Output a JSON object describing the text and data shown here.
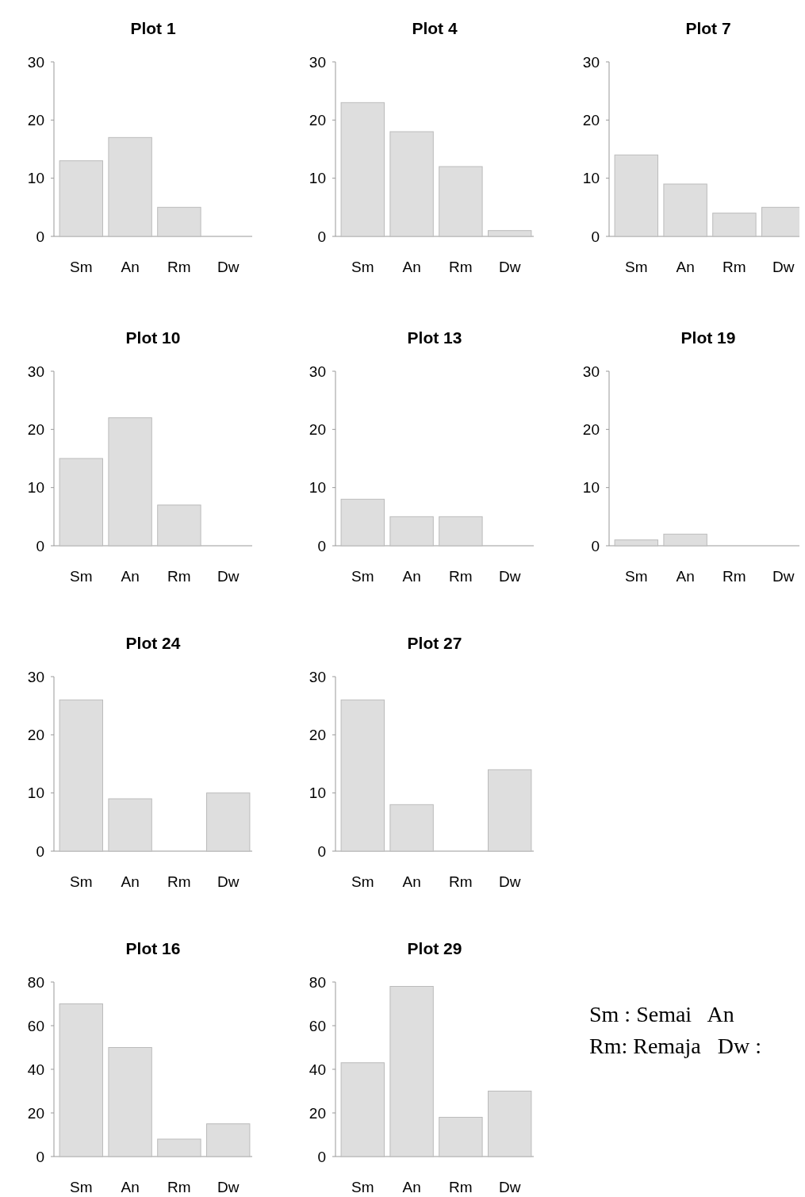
{
  "chart_data": [
    {
      "type": "bar",
      "title": "Plot 1",
      "categories": [
        "Sm",
        "An",
        "Rm",
        "Dw"
      ],
      "values": [
        13,
        17,
        5,
        0
      ],
      "color": "#dedede",
      "ylim": [
        0,
        30
      ],
      "yticks": [
        0,
        10,
        20,
        30
      ]
    },
    {
      "type": "bar",
      "title": "Plot 4",
      "categories": [
        "Sm",
        "An",
        "Rm",
        "Dw"
      ],
      "values": [
        23,
        18,
        12,
        1
      ],
      "color": "#dedede",
      "ylim": [
        0,
        30
      ],
      "yticks": [
        0,
        10,
        20,
        30
      ]
    },
    {
      "type": "bar",
      "title": "Plot 7",
      "categories": [
        "Sm",
        "An",
        "Rm",
        "Dw"
      ],
      "values": [
        14,
        9,
        4,
        5
      ],
      "color": "#dedede",
      "ylim": [
        0,
        30
      ],
      "yticks": [
        0,
        10,
        20,
        30
      ]
    },
    {
      "type": "bar",
      "title": "Plot 10",
      "categories": [
        "Sm",
        "An",
        "Rm",
        "Dw"
      ],
      "values": [
        15,
        22,
        7,
        0
      ],
      "color": "#dedede",
      "ylim": [
        0,
        30
      ],
      "yticks": [
        0,
        10,
        20,
        30
      ]
    },
    {
      "type": "bar",
      "title": "Plot 13",
      "categories": [
        "Sm",
        "An",
        "Rm",
        "Dw"
      ],
      "values": [
        8,
        5,
        5,
        0
      ],
      "color": "#dedede",
      "ylim": [
        0,
        30
      ],
      "yticks": [
        0,
        10,
        20,
        30
      ]
    },
    {
      "type": "bar",
      "title": "Plot 19",
      "categories": [
        "Sm",
        "An",
        "Rm",
        "Dw"
      ],
      "values": [
        1,
        2,
        0,
        0
      ],
      "color": "#dedede",
      "ylim": [
        0,
        30
      ],
      "yticks": [
        0,
        10,
        20,
        30
      ]
    },
    {
      "type": "bar",
      "title": "Plot 24",
      "categories": [
        "Sm",
        "An",
        "Rm",
        "Dw"
      ],
      "values": [
        26,
        9,
        0,
        10
      ],
      "color": "#dedede",
      "ylim": [
        0,
        30
      ],
      "yticks": [
        0,
        10,
        20,
        30
      ]
    },
    {
      "type": "bar",
      "title": "Plot 27",
      "categories": [
        "Sm",
        "An",
        "Rm",
        "Dw"
      ],
      "values": [
        26,
        8,
        0,
        14
      ],
      "color": "#dedede",
      "ylim": [
        0,
        30
      ],
      "yticks": [
        0,
        10,
        20,
        30
      ]
    },
    {
      "type": "bar",
      "title": "Plot 16",
      "categories": [
        "Sm",
        "An",
        "Rm",
        "Dw"
      ],
      "values": [
        70,
        50,
        8,
        15
      ],
      "color": "#dedede",
      "ylim": [
        0,
        80
      ],
      "yticks": [
        0,
        20,
        40,
        60,
        80
      ]
    },
    {
      "type": "bar",
      "title": "Plot 29",
      "categories": [
        "Sm",
        "An",
        "Rm",
        "Dw"
      ],
      "values": [
        43,
        78,
        18,
        30
      ],
      "color": "#dedede",
      "ylim": [
        0,
        80
      ],
      "yticks": [
        0,
        20,
        40,
        60,
        80
      ]
    },
    {
      "type": "other",
      "annotations": [
        "Sm : Semai   An",
        "Rm: Remaja   Dw :"
      ]
    }
  ]
}
